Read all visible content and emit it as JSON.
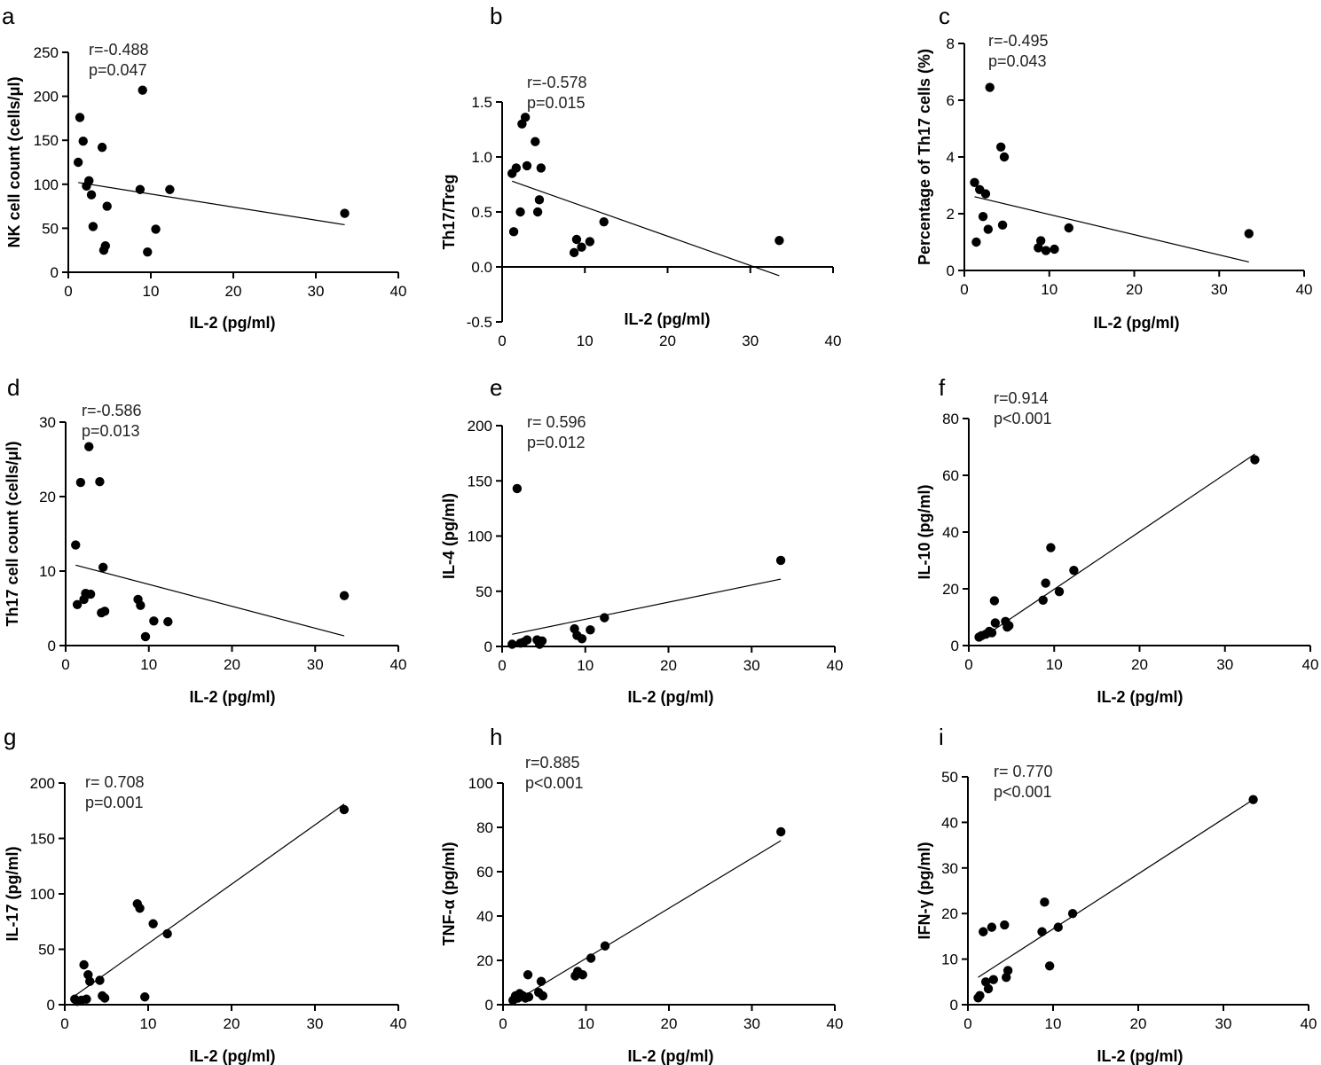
{
  "chart_data": [
    {
      "type": "scatter",
      "panel": "a",
      "xlabel": "IL-2 (pg/ml)",
      "ylabel": "NK cell count (cells/μl)",
      "xlim": [
        0,
        40
      ],
      "ylim": [
        0,
        250
      ],
      "xticks": [
        0,
        10,
        20,
        30,
        40
      ],
      "yticks": [
        0,
        50,
        100,
        150,
        200,
        250
      ],
      "stats": [
        "r=-0.488",
        "p=0.047"
      ],
      "x": [
        1.2,
        1.4,
        1.8,
        2.2,
        2.5,
        2.8,
        3.0,
        4.1,
        4.3,
        4.5,
        4.7,
        8.7,
        9.0,
        9.6,
        10.6,
        12.3,
        33.5
      ],
      "y": [
        125,
        176,
        149,
        98,
        104,
        88,
        52,
        142,
        25,
        30,
        75,
        94,
        207,
        23,
        49,
        94,
        67
      ],
      "fit": [
        [
          1.2,
          102
        ],
        [
          33.5,
          54
        ]
      ]
    },
    {
      "type": "scatter",
      "panel": "b",
      "xlabel": "IL-2 (pg/ml)",
      "ylabel": "Th17/Treg",
      "xlim": [
        0,
        40
      ],
      "ylim": [
        -0.5,
        1.5
      ],
      "xticks": [
        0,
        10,
        20,
        30,
        40
      ],
      "yticks": [
        -0.5,
        0.0,
        0.5,
        1.0,
        1.5
      ],
      "stats": [
        "r=-0.578",
        "p=0.015"
      ],
      "x": [
        1.2,
        1.4,
        1.7,
        2.2,
        2.4,
        2.8,
        3.0,
        4.0,
        4.3,
        4.5,
        4.7,
        8.7,
        9.0,
        9.6,
        10.6,
        12.3,
        33.5
      ],
      "y": [
        0.85,
        0.32,
        0.9,
        0.5,
        1.3,
        1.36,
        0.92,
        1.14,
        0.5,
        0.61,
        0.9,
        0.13,
        0.25,
        0.18,
        0.23,
        0.41,
        0.24
      ],
      "fit": [
        [
          1.2,
          0.78
        ],
        [
          33.5,
          -0.08
        ]
      ]
    },
    {
      "type": "scatter",
      "panel": "c",
      "xlabel": "IL-2 (pg/ml)",
      "ylabel": "Percentage of Th17 cells (%)",
      "xlim": [
        0,
        40
      ],
      "ylim": [
        0,
        8
      ],
      "xticks": [
        0,
        10,
        20,
        30,
        40
      ],
      "yticks": [
        0,
        2,
        4,
        6,
        8
      ],
      "stats": [
        "r=-0.495",
        "p=0.043"
      ],
      "x": [
        1.2,
        1.4,
        1.8,
        2.2,
        2.5,
        2.8,
        3.0,
        4.3,
        4.5,
        4.7,
        8.7,
        9.0,
        9.6,
        10.6,
        12.3,
        33.5
      ],
      "y": [
        3.1,
        1.0,
        2.85,
        1.9,
        2.7,
        1.45,
        6.45,
        4.35,
        1.6,
        4.0,
        0.8,
        1.05,
        0.7,
        0.75,
        1.5,
        1.3
      ],
      "fit": [
        [
          1.2,
          2.6
        ],
        [
          33.5,
          0.3
        ]
      ]
    },
    {
      "type": "scatter",
      "panel": "d",
      "xlabel": "IL-2 (pg/ml)",
      "ylabel": "Th17 cell count (cells/μl)",
      "xlim": [
        0,
        40
      ],
      "ylim": [
        0,
        30
      ],
      "xticks": [
        0,
        10,
        20,
        30,
        40
      ],
      "yticks": [
        0,
        10,
        20,
        30
      ],
      "stats": [
        "r=-0.586",
        "p=0.013"
      ],
      "x": [
        1.2,
        1.4,
        1.8,
        2.2,
        2.4,
        2.8,
        3.0,
        4.1,
        4.3,
        4.5,
        4.7,
        8.7,
        9.0,
        9.6,
        10.6,
        12.3,
        33.5
      ],
      "y": [
        13.5,
        5.5,
        21.9,
        6.2,
        7.0,
        26.7,
        6.9,
        22.0,
        4.4,
        10.5,
        4.6,
        6.2,
        5.4,
        1.2,
        3.3,
        3.2,
        6.7
      ],
      "fit": [
        [
          1.2,
          10.8
        ],
        [
          33.5,
          1.3
        ]
      ]
    },
    {
      "type": "scatter",
      "panel": "e",
      "xlabel": "IL-2 (pg/ml)",
      "ylabel": "IL-4 (pg/ml)",
      "xlim": [
        0,
        40
      ],
      "ylim": [
        0,
        200
      ],
      "xticks": [
        0,
        10,
        20,
        30,
        40
      ],
      "yticks": [
        0,
        50,
        100,
        150,
        200
      ],
      "stats": [
        "r= 0.596",
        "p=0.012"
      ],
      "x": [
        1.2,
        1.8,
        2.2,
        2.6,
        3.0,
        4.2,
        4.5,
        4.8,
        8.7,
        9.0,
        9.6,
        10.6,
        12.3,
        33.5
      ],
      "y": [
        2,
        143,
        3,
        4,
        6,
        6,
        2,
        5,
        16,
        10,
        7,
        15,
        26,
        78
      ],
      "fit": [
        [
          1.2,
          11
        ],
        [
          33.5,
          61
        ]
      ]
    },
    {
      "type": "scatter",
      "panel": "f",
      "xlabel": "IL-2 (pg/ml)",
      "ylabel": "IL-10 (pg/ml)",
      "xlim": [
        0,
        40
      ],
      "ylim": [
        0,
        80
      ],
      "xticks": [
        0,
        10,
        20,
        30,
        40
      ],
      "yticks": [
        0,
        20,
        40,
        60,
        80
      ],
      "stats": [
        "r=0.914",
        "p<0.001"
      ],
      "x": [
        1.2,
        1.5,
        2.0,
        2.4,
        2.7,
        3.0,
        3.1,
        4.3,
        4.5,
        4.7,
        8.7,
        9.0,
        9.6,
        10.6,
        12.3,
        33.5
      ],
      "y": [
        3,
        3.5,
        4,
        5,
        4.5,
        15.8,
        8,
        8.5,
        6.5,
        7,
        16,
        22,
        34.5,
        19,
        26.5,
        65.5
      ],
      "fit": [
        [
          1.2,
          2
        ],
        [
          33.5,
          67.5
        ]
      ]
    },
    {
      "type": "scatter",
      "panel": "g",
      "xlabel": "IL-2 (pg/ml)",
      "ylabel": "IL-17 (pg/ml)",
      "xlim": [
        0,
        40
      ],
      "ylim": [
        0,
        200
      ],
      "xticks": [
        0,
        10,
        20,
        30,
        40
      ],
      "yticks": [
        0,
        50,
        100,
        150,
        200
      ],
      "stats": [
        "r= 0.708",
        "p=0.001"
      ],
      "x": [
        1.2,
        1.5,
        2.0,
        2.3,
        2.6,
        2.8,
        3.0,
        4.2,
        4.5,
        4.8,
        8.7,
        9.0,
        9.6,
        10.6,
        12.3,
        33.5
      ],
      "y": [
        5,
        3,
        4,
        36,
        5,
        27,
        21,
        22,
        8,
        6,
        91,
        87,
        7,
        73,
        64,
        176
      ],
      "fit": [
        [
          1.2,
          8
        ],
        [
          33.5,
          181
        ]
      ]
    },
    {
      "type": "scatter",
      "panel": "h",
      "xlabel": "IL-2 (pg/ml)",
      "ylabel": "TNF-α (pg/ml)",
      "xlim": [
        0,
        40
      ],
      "ylim": [
        0,
        100
      ],
      "xticks": [
        0,
        10,
        20,
        30,
        40
      ],
      "yticks": [
        0,
        20,
        40,
        60,
        80,
        100
      ],
      "stats": [
        "r=0.885",
        "p<0.001"
      ],
      "x": [
        1.2,
        1.5,
        1.8,
        2.0,
        2.4,
        2.7,
        3.0,
        3.1,
        4.3,
        4.6,
        4.8,
        8.7,
        9.0,
        9.6,
        10.6,
        12.3,
        33.5
      ],
      "y": [
        2,
        4,
        3,
        5,
        4,
        3,
        13.5,
        3.5,
        5.5,
        10.5,
        4,
        13,
        15,
        13.5,
        21,
        26.5,
        78
      ],
      "fit": [
        [
          1.2,
          1
        ],
        [
          33.5,
          74
        ]
      ]
    },
    {
      "type": "scatter",
      "panel": "i",
      "xlabel": "IL-2 (pg/ml)",
      "ylabel": "IFN-γ (pg/ml)",
      "xlim": [
        0,
        40
      ],
      "ylim": [
        0,
        50
      ],
      "xticks": [
        0,
        10,
        20,
        30,
        40
      ],
      "yticks": [
        0,
        10,
        20,
        30,
        40,
        50
      ],
      "stats": [
        "r= 0.770",
        "p<0.001"
      ],
      "x": [
        1.2,
        1.4,
        1.8,
        2.1,
        2.4,
        2.8,
        3.0,
        4.3,
        4.5,
        4.7,
        8.7,
        9.0,
        9.6,
        10.6,
        12.3,
        33.5
      ],
      "y": [
        1.5,
        2,
        16,
        5,
        3.5,
        17,
        5.5,
        17.5,
        6,
        7.5,
        16,
        22.5,
        8.5,
        17,
        20,
        45
      ],
      "fit": [
        [
          1.2,
          6
        ],
        [
          33.5,
          45
        ]
      ]
    }
  ]
}
